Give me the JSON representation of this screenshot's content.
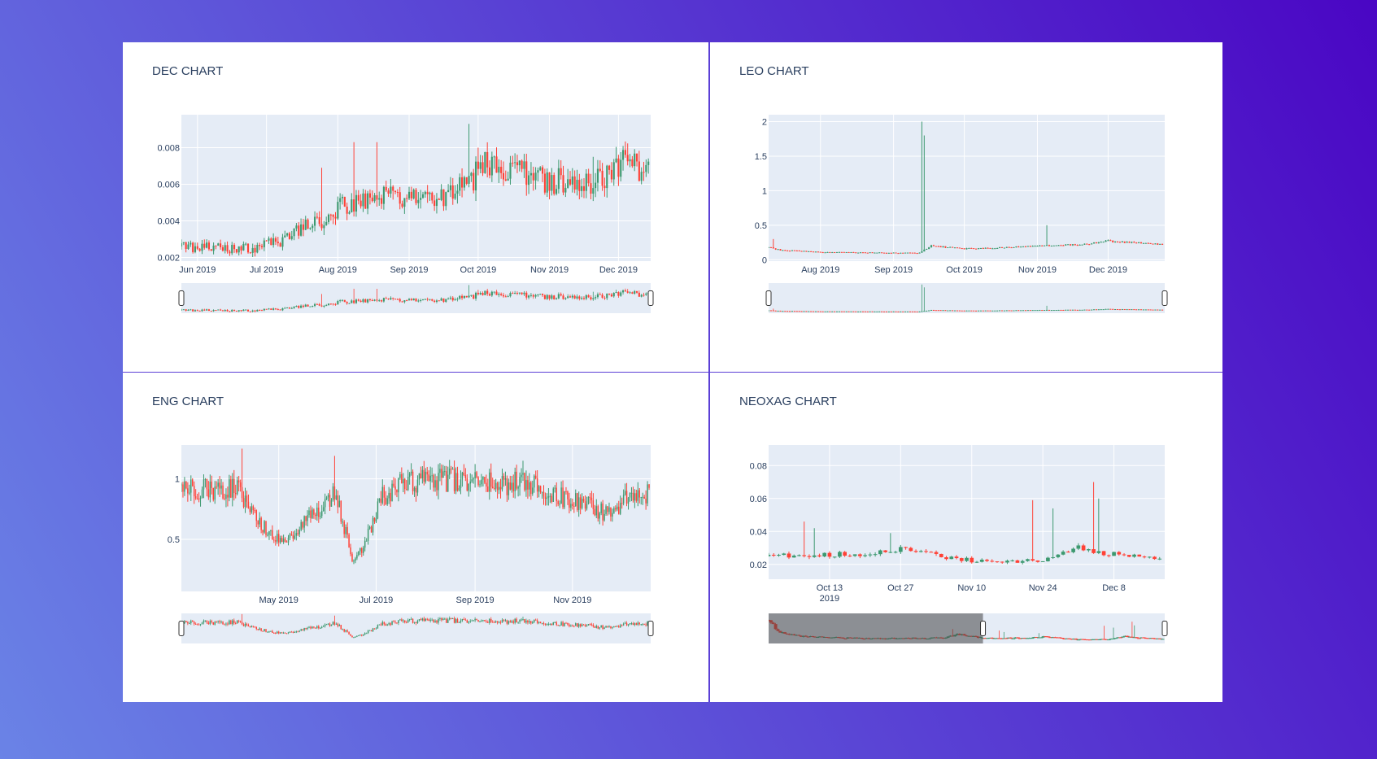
{
  "colors": {
    "increasing": "#3d9970",
    "decreasing": "#ff4136",
    "plot_bg": "#e5ecf6",
    "grid": "#ffffff",
    "text": "#2a3f5f"
  },
  "chart_data": [
    {
      "type": "candlestick",
      "title": "DEC CHART",
      "xlabel": "",
      "ylabel": "",
      "x_range": [
        "2019-05-25",
        "2019-12-15"
      ],
      "y_range": [
        0.0018,
        0.0098
      ],
      "x_ticks": [
        "2019-06-01",
        "2019-07-01",
        "2019-08-01",
        "2019-09-01",
        "2019-10-01",
        "2019-11-01",
        "2019-12-01"
      ],
      "x_tick_labels": [
        "Jun 2019",
        "Jul 2019",
        "Aug 2019",
        "Sep 2019",
        "Oct 2019",
        "Nov 2019",
        "Dec 2019"
      ],
      "y_ticks": [
        0.002,
        0.004,
        0.006,
        0.008
      ],
      "y_tick_labels": [
        "0.002",
        "0.004",
        "0.006",
        "0.008"
      ],
      "grid": true,
      "rangeslider": true,
      "series_path": [
        [
          "2019-05-25",
          0.0026
        ],
        [
          "2019-06-15",
          0.0025
        ],
        [
          "2019-06-25",
          0.0025
        ],
        [
          "2019-07-08",
          0.0029
        ],
        [
          "2019-07-15",
          0.0035
        ],
        [
          "2019-07-25",
          0.004
        ],
        [
          "2019-08-02",
          0.0049
        ],
        [
          "2019-08-10",
          0.005
        ],
        [
          "2019-08-20",
          0.0054
        ],
        [
          "2019-09-01",
          0.0052
        ],
        [
          "2019-09-10",
          0.005
        ],
        [
          "2019-09-20",
          0.0055
        ],
        [
          "2019-09-28",
          0.0062
        ],
        [
          "2019-10-02",
          0.007
        ],
        [
          "2019-10-15",
          0.007
        ],
        [
          "2019-10-25",
          0.0063
        ],
        [
          "2019-11-05",
          0.0062
        ],
        [
          "2019-11-12",
          0.0057
        ],
        [
          "2019-11-20",
          0.006
        ],
        [
          "2019-11-28",
          0.0065
        ],
        [
          "2019-12-03",
          0.0072
        ],
        [
          "2019-12-10",
          0.0068
        ],
        [
          "2019-12-15",
          0.007
        ]
      ],
      "spikes": [
        [
          "2019-07-25",
          0.0069
        ],
        [
          "2019-08-08",
          0.0083
        ],
        [
          "2019-08-18",
          0.0083
        ],
        [
          "2019-09-27",
          0.0093
        ],
        [
          "2019-10-01",
          0.008
        ],
        [
          "2019-11-20",
          0.0075
        ]
      ],
      "volatility": 0.12
    },
    {
      "type": "candlestick",
      "title": "LEO CHART",
      "xlabel": "",
      "ylabel": "",
      "x_range": [
        "2019-07-10",
        "2019-12-25"
      ],
      "y_range": [
        -0.02,
        2.1
      ],
      "x_ticks": [
        "2019-08-01",
        "2019-09-01",
        "2019-10-01",
        "2019-11-01",
        "2019-12-01"
      ],
      "x_tick_labels": [
        "Aug 2019",
        "Sep 2019",
        "Oct 2019",
        "Nov 2019",
        "Dec 2019"
      ],
      "y_ticks": [
        0,
        0.5,
        1,
        1.5,
        2
      ],
      "y_tick_labels": [
        "0",
        "0.5",
        "1",
        "1.5",
        "2"
      ],
      "grid": true,
      "rangeslider": true,
      "series_path": [
        [
          "2019-07-10",
          0.18
        ],
        [
          "2019-07-15",
          0.14
        ],
        [
          "2019-08-01",
          0.11
        ],
        [
          "2019-09-01",
          0.1
        ],
        [
          "2019-09-12",
          0.1
        ],
        [
          "2019-09-17",
          0.2
        ],
        [
          "2019-10-01",
          0.16
        ],
        [
          "2019-10-20",
          0.18
        ],
        [
          "2019-11-01",
          0.2
        ],
        [
          "2019-11-20",
          0.22
        ],
        [
          "2019-12-01",
          0.27
        ],
        [
          "2019-12-25",
          0.22
        ]
      ],
      "spikes": [
        [
          "2019-07-12",
          0.3
        ],
        [
          "2019-09-13",
          2.0
        ],
        [
          "2019-09-14",
          1.8
        ],
        [
          "2019-11-05",
          0.5
        ]
      ],
      "volatility": 0.05
    },
    {
      "type": "candlestick",
      "title": "ENG CHART",
      "xlabel": "",
      "ylabel": "",
      "x_range": [
        "2019-03-01",
        "2019-12-20"
      ],
      "y_range": [
        0.07,
        1.28
      ],
      "x_ticks": [
        "2019-05-01",
        "2019-07-01",
        "2019-09-01",
        "2019-11-01"
      ],
      "x_tick_labels": [
        "May 2019",
        "Jul 2019",
        "Sep 2019",
        "Nov 2019"
      ],
      "y_ticks": [
        0.5,
        1
      ],
      "y_tick_labels": [
        "0.5",
        "1"
      ],
      "grid": true,
      "rangeslider": true,
      "series_path": [
        [
          "2019-03-01",
          0.95
        ],
        [
          "2019-03-20",
          0.9
        ],
        [
          "2019-04-05",
          0.95
        ],
        [
          "2019-04-15",
          0.7
        ],
        [
          "2019-04-25",
          0.55
        ],
        [
          "2019-05-05",
          0.45
        ],
        [
          "2019-05-20",
          0.7
        ],
        [
          "2019-05-28",
          0.75
        ],
        [
          "2019-06-05",
          0.9
        ],
        [
          "2019-06-12",
          0.55
        ],
        [
          "2019-06-17",
          0.3
        ],
        [
          "2019-06-25",
          0.5
        ],
        [
          "2019-07-05",
          0.85
        ],
        [
          "2019-07-15",
          0.95
        ],
        [
          "2019-07-30",
          0.99
        ],
        [
          "2019-08-30",
          0.99
        ],
        [
          "2019-09-10",
          0.97
        ],
        [
          "2019-09-20",
          0.95
        ],
        [
          "2019-10-01",
          1.02
        ],
        [
          "2019-10-10",
          0.92
        ],
        [
          "2019-10-25",
          0.85
        ],
        [
          "2019-11-10",
          0.78
        ],
        [
          "2019-11-25",
          0.7
        ],
        [
          "2019-12-05",
          0.85
        ],
        [
          "2019-12-20",
          0.88
        ]
      ],
      "spikes": [
        [
          "2019-04-08",
          1.25
        ],
        [
          "2019-06-05",
          1.19
        ],
        [
          "2019-10-01",
          1.15
        ]
      ],
      "volatility": 0.1
    },
    {
      "type": "candlestick",
      "title": "NEOXAG CHART",
      "xlabel": "",
      "ylabel": "",
      "x_range": [
        "2019-10-01",
        "2019-12-18"
      ],
      "y_range": [
        0.011,
        0.0925
      ],
      "x_ticks": [
        "2019-10-13",
        "2019-10-27",
        "2019-11-10",
        "2019-11-24",
        "2019-12-08"
      ],
      "x_tick_labels": [
        "Oct 13\n2019",
        "Oct 27",
        "Nov 10",
        "Nov 24",
        "Dec 8"
      ],
      "y_ticks": [
        0.02,
        0.04,
        0.06,
        0.08
      ],
      "y_tick_labels": [
        "0.02",
        "0.04",
        "0.06",
        "0.08"
      ],
      "grid": true,
      "rangeslider": true,
      "rangeslider_selection": [
        "2019-07-01",
        "2019-10-01"
      ],
      "series_path": [
        [
          "2019-10-01",
          0.025
        ],
        [
          "2019-10-10",
          0.026
        ],
        [
          "2019-10-20",
          0.026
        ],
        [
          "2019-10-28",
          0.03
        ],
        [
          "2019-11-05",
          0.024
        ],
        [
          "2019-11-15",
          0.021
        ],
        [
          "2019-11-25",
          0.023
        ],
        [
          "2019-12-01",
          0.03
        ],
        [
          "2019-12-05",
          0.027
        ],
        [
          "2019-12-18",
          0.023
        ]
      ],
      "spikes": [
        [
          "2019-10-08",
          0.046
        ],
        [
          "2019-10-10",
          0.042
        ],
        [
          "2019-10-25",
          0.039
        ],
        [
          "2019-11-22",
          0.059
        ],
        [
          "2019-11-26",
          0.054
        ],
        [
          "2019-12-04",
          0.07
        ],
        [
          "2019-12-05",
          0.06
        ]
      ],
      "volatility": 0.06
    }
  ]
}
